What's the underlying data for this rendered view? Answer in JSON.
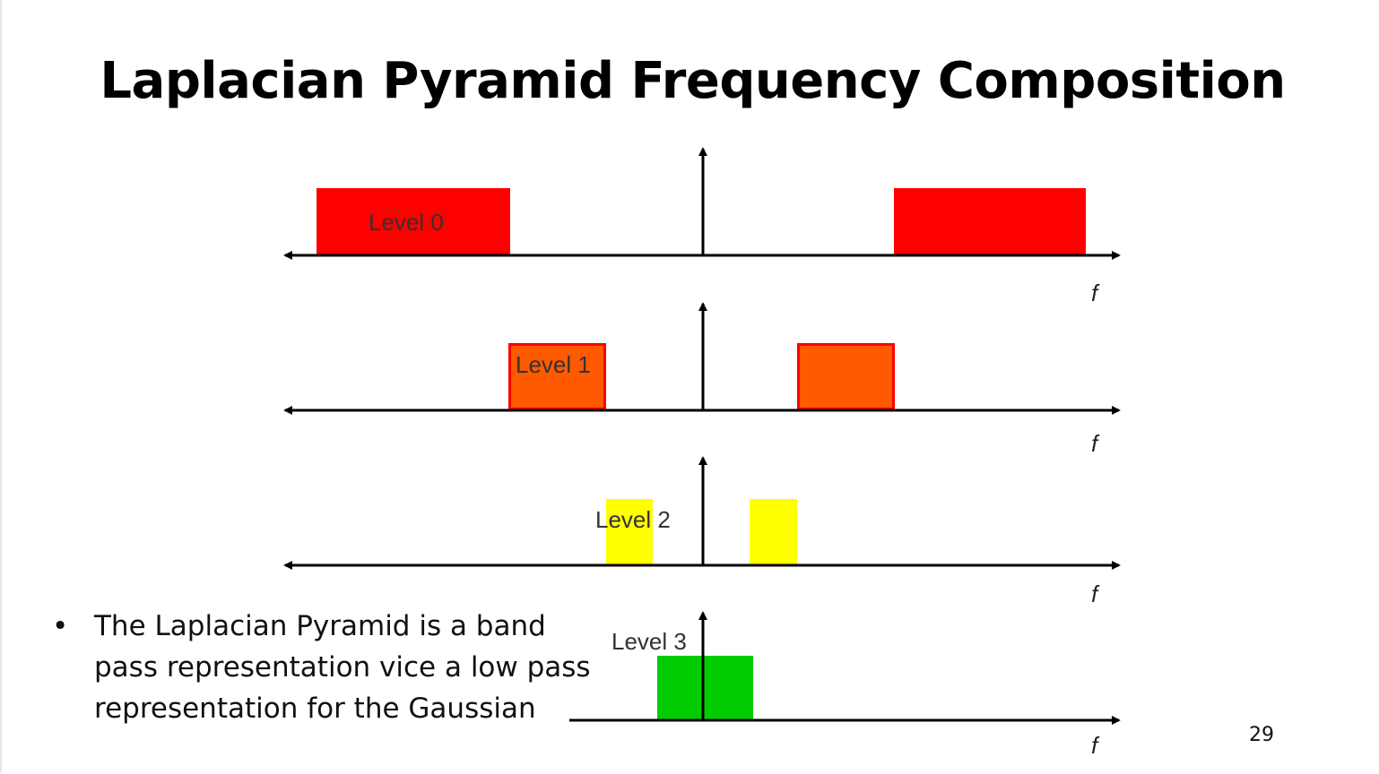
{
  "title": "Laplacian Pyramid Frequency Composition",
  "bullet": {
    "marker": "•",
    "text": "The Laplacian Pyramid is a band pass representation vice a low pass representation for the Gaussian"
  },
  "page_number": "29",
  "diagram": {
    "axis_label": "f",
    "levels": [
      {
        "label": "Level 0",
        "color": "#ff0000"
      },
      {
        "label": "Level 1",
        "color": "#ff5a00",
        "border": "#ff0000"
      },
      {
        "label": "Level 2",
        "color": "#ffff00"
      },
      {
        "label": "Level 3",
        "color": "#00cc00"
      }
    ]
  }
}
